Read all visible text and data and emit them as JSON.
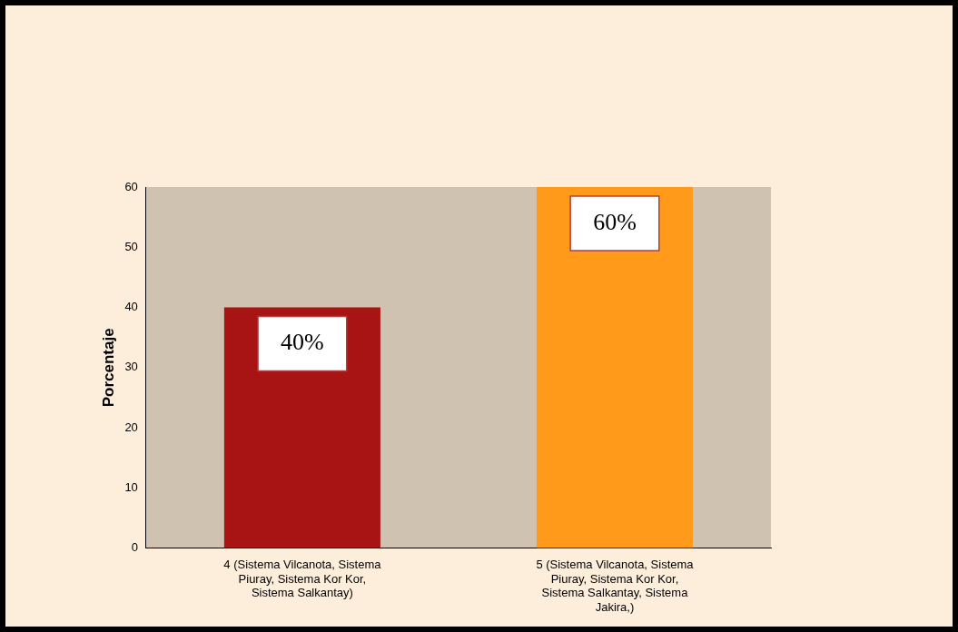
{
  "chart_data": {
    "type": "bar",
    "ylabel": "Porcentaje",
    "categories": [
      "4 (Sistema Vilcanota, Sistema Piuray, Sistema Kor Kor, Sistema Salkantay)",
      "5 (Sistema Vilcanota, Sistema Piuray, Sistema Kor Kor, Sistema Salkantay, Sistema Jakira,)"
    ],
    "values": [
      40,
      60
    ],
    "colors": [
      "#a81414",
      "#ff9a1a"
    ],
    "value_labels": [
      "40%",
      "60%"
    ],
    "ylim": [
      0,
      60
    ],
    "yticks": [
      0,
      10,
      20,
      30,
      40,
      50,
      60
    ],
    "grid": false,
    "legend": false
  }
}
